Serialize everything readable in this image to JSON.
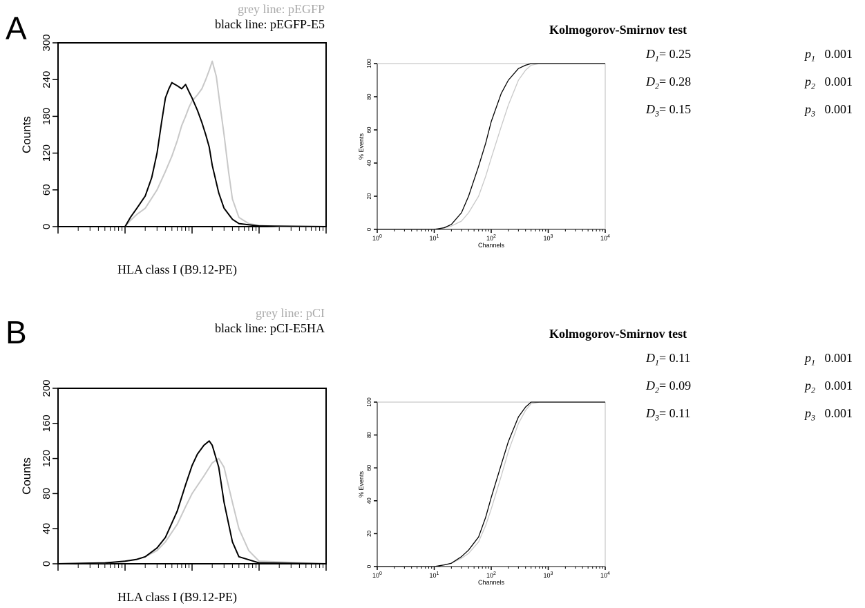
{
  "panels": [
    {
      "letter": "A",
      "legend": {
        "grey": "grey line: pEGFP",
        "black": "black line: pEGFP-E5"
      },
      "ks_title": "Kolmogorov-Smirnov test",
      "x_axis_label": "HLA class I (B9.12-PE)",
      "stats": [
        {
          "d_label": "D",
          "d_sub": "1",
          "d_value": "= 0.25",
          "p_label": "p",
          "p_sub": "1",
          "p_value": "0.001"
        },
        {
          "d_label": "D",
          "d_sub": "2",
          "d_value": "= 0.28",
          "p_label": "p",
          "p_sub": "2",
          "p_value": "0.001"
        },
        {
          "d_label": "D",
          "d_sub": "3",
          "d_value": "= 0.15",
          "p_label": "p",
          "p_sub": "3",
          "p_value": "0.001"
        }
      ]
    },
    {
      "letter": "B",
      "legend": {
        "grey": "grey line: pCI",
        "black": "black line: pCI-E5HA"
      },
      "ks_title": "Kolmogorov-Smirnov test",
      "x_axis_label": "HLA class I (B9.12-PE)",
      "stats": [
        {
          "d_label": "D",
          "d_sub": "1",
          "d_value": "= 0.11",
          "p_label": "p",
          "p_sub": "1",
          "p_value": "0.001"
        },
        {
          "d_label": "D",
          "d_sub": "2",
          "d_value": "= 0.09",
          "p_label": "p",
          "p_sub": "2",
          "p_value": "0.001"
        },
        {
          "d_label": "D",
          "d_sub": "3",
          "d_value": "= 0.11",
          "p_label": "p",
          "p_sub": "3",
          "p_value": "0.001"
        }
      ]
    }
  ],
  "colors": {
    "grey_series": "#c8c8c8",
    "black_series": "#000000",
    "axis": "#000000"
  },
  "chart_data": [
    {
      "panel": "A",
      "type": "line",
      "ylabel": "Counts",
      "xlabel": "HLA class I (B9.12-PE)",
      "x_scale": "log",
      "xlim": [
        1,
        10000
      ],
      "ylim": [
        0,
        300
      ],
      "yticks": [
        "0",
        "60",
        "120",
        "180",
        "240",
        "300"
      ],
      "grid": false,
      "series": [
        {
          "name": "pEGFP",
          "color": "#c8c8c8",
          "x": [
            1,
            10,
            12,
            15,
            20,
            30,
            40,
            50,
            60,
            70,
            80,
            90,
            100,
            120,
            140,
            160,
            180,
            200,
            230,
            260,
            300,
            350,
            400,
            500,
            700,
            1000,
            2000,
            10000
          ],
          "y": [
            0,
            0,
            10,
            20,
            30,
            60,
            90,
            115,
            140,
            165,
            180,
            195,
            205,
            215,
            225,
            240,
            255,
            270,
            245,
            200,
            150,
            90,
            45,
            15,
            5,
            2,
            0,
            0
          ]
        },
        {
          "name": "pEGFP-E5",
          "color": "#000000",
          "x": [
            1,
            10,
            12,
            15,
            20,
            25,
            30,
            35,
            40,
            45,
            50,
            60,
            70,
            80,
            90,
            100,
            120,
            140,
            160,
            180,
            200,
            250,
            300,
            400,
            500,
            1000,
            10000
          ],
          "y": [
            0,
            0,
            15,
            30,
            50,
            80,
            120,
            170,
            210,
            225,
            235,
            230,
            225,
            232,
            220,
            210,
            190,
            170,
            150,
            130,
            100,
            55,
            30,
            12,
            5,
            1,
            0
          ]
        }
      ]
    },
    {
      "panel": "A",
      "type": "line",
      "ylabel": "% Events",
      "xlabel": "Channels",
      "x_scale": "log",
      "xlim": [
        1,
        10000
      ],
      "ylim": [
        0,
        100
      ],
      "yticks": [
        "0",
        "20",
        "40",
        "60",
        "80",
        "100"
      ],
      "xticks": [
        "10^0",
        "10^1",
        "10^2",
        "10^3",
        "10^4"
      ],
      "series": [
        {
          "name": "pEGFP",
          "color": "#c8c8c8",
          "x": [
            1,
            10,
            15,
            20,
            30,
            40,
            60,
            80,
            100,
            150,
            200,
            300,
            400,
            500,
            700,
            1000,
            10000
          ],
          "y": [
            0,
            0,
            1,
            2,
            5,
            10,
            20,
            32,
            43,
            62,
            75,
            90,
            96,
            99,
            100,
            100,
            100
          ]
        },
        {
          "name": "pEGFP-E5",
          "color": "#000000",
          "x": [
            1,
            10,
            15,
            20,
            30,
            40,
            60,
            80,
            100,
            150,
            200,
            300,
            400,
            500,
            700,
            1000,
            10000
          ],
          "y": [
            0,
            0,
            1,
            3,
            10,
            20,
            38,
            52,
            65,
            82,
            90,
            97,
            99,
            100,
            100,
            100,
            100
          ]
        }
      ]
    },
    {
      "panel": "B",
      "type": "line",
      "ylabel": "Counts",
      "xlabel": "HLA class I (B9.12-PE)",
      "x_scale": "log",
      "xlim": [
        1,
        10000
      ],
      "ylim": [
        0,
        200
      ],
      "yticks": [
        "0",
        "40",
        "80",
        "120",
        "160",
        "200"
      ],
      "grid": false,
      "series": [
        {
          "name": "pCI",
          "color": "#c8c8c8",
          "x": [
            1,
            5,
            10,
            15,
            20,
            30,
            40,
            60,
            80,
            100,
            150,
            200,
            250,
            300,
            400,
            500,
            700,
            1000,
            10000
          ],
          "y": [
            0,
            1,
            3,
            5,
            8,
            15,
            25,
            45,
            65,
            80,
            100,
            115,
            120,
            110,
            70,
            40,
            15,
            3,
            0
          ]
        },
        {
          "name": "pCI-E5HA",
          "color": "#000000",
          "x": [
            1,
            5,
            10,
            15,
            20,
            30,
            40,
            60,
            80,
            100,
            120,
            150,
            180,
            200,
            250,
            300,
            400,
            500,
            1000,
            10000
          ],
          "y": [
            0,
            1,
            3,
            5,
            8,
            18,
            30,
            60,
            90,
            112,
            125,
            135,
            140,
            135,
            110,
            70,
            25,
            8,
            1,
            0
          ]
        }
      ]
    },
    {
      "panel": "B",
      "type": "line",
      "ylabel": "% Events",
      "xlabel": "Channels",
      "x_scale": "log",
      "xlim": [
        1,
        10000
      ],
      "ylim": [
        0,
        100
      ],
      "yticks": [
        "0",
        "20",
        "40",
        "60",
        "80",
        "100"
      ],
      "xticks": [
        "10^0",
        "10^1",
        "10^2",
        "10^3",
        "10^4"
      ],
      "series": [
        {
          "name": "pCI",
          "color": "#c8c8c8",
          "x": [
            1,
            10,
            15,
            20,
            30,
            40,
            60,
            80,
            100,
            150,
            200,
            300,
            400,
            500,
            700,
            1000,
            10000
          ],
          "y": [
            0,
            0,
            1,
            2,
            5,
            8,
            15,
            25,
            35,
            55,
            70,
            87,
            95,
            99,
            100,
            100,
            100
          ]
        },
        {
          "name": "pCI-E5HA",
          "color": "#000000",
          "x": [
            1,
            10,
            15,
            20,
            30,
            40,
            60,
            80,
            100,
            150,
            200,
            300,
            400,
            500,
            700,
            1000,
            10000
          ],
          "y": [
            0,
            0,
            1,
            2,
            6,
            10,
            18,
            30,
            42,
            62,
            76,
            91,
            97,
            100,
            100,
            100,
            100
          ]
        }
      ]
    }
  ]
}
